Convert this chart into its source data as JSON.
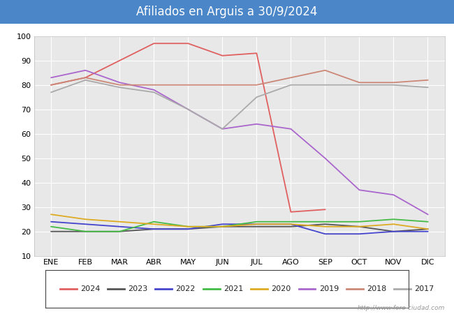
{
  "title": "Afiliados en Arguis a 30/9/2024",
  "title_color": "#ffffff",
  "title_bg_color": "#4a86c8",
  "ylim": [
    10,
    100
  ],
  "yticks": [
    10,
    20,
    30,
    40,
    50,
    60,
    70,
    80,
    90,
    100
  ],
  "months": [
    "ENE",
    "FEB",
    "MAR",
    "ABR",
    "MAY",
    "JUN",
    "JUL",
    "AGO",
    "SEP",
    "OCT",
    "NOV",
    "DIC"
  ],
  "plot_bg_color": "#e8e8e8",
  "chart_bg_color": "#d8d8d8",
  "watermark": "http://www.foro-ciudad.com",
  "series": [
    {
      "year": "2024",
      "color": "#e06060",
      "data": [
        80,
        83,
        90,
        97,
        97,
        92,
        93,
        28,
        29,
        null,
        null,
        null
      ]
    },
    {
      "year": "2023",
      "color": "#555555",
      "data": [
        20,
        20,
        20,
        21,
        21,
        22,
        22,
        22,
        23,
        22,
        20,
        21
      ]
    },
    {
      "year": "2022",
      "color": "#4444cc",
      "data": [
        24,
        23,
        22,
        21,
        21,
        23,
        23,
        23,
        19,
        19,
        20,
        20
      ]
    },
    {
      "year": "2021",
      "color": "#44bb44",
      "data": [
        22,
        20,
        20,
        24,
        22,
        22,
        24,
        24,
        24,
        24,
        25,
        24
      ]
    },
    {
      "year": "2020",
      "color": "#ddaa22",
      "data": [
        27,
        25,
        24,
        23,
        22,
        22,
        23,
        23,
        22,
        22,
        23,
        21
      ]
    },
    {
      "year": "2019",
      "color": "#aa66cc",
      "data": [
        83,
        86,
        81,
        78,
        70,
        62,
        64,
        62,
        50,
        37,
        35,
        27
      ]
    },
    {
      "year": "2018",
      "color": "#cc8877",
      "data": [
        80,
        83,
        80,
        80,
        80,
        80,
        80,
        83,
        86,
        81,
        81,
        82
      ]
    },
    {
      "year": "2017",
      "color": "#aaaaaa",
      "data": [
        77,
        82,
        79,
        77,
        70,
        62,
        75,
        80,
        80,
        80,
        80,
        79
      ]
    }
  ]
}
